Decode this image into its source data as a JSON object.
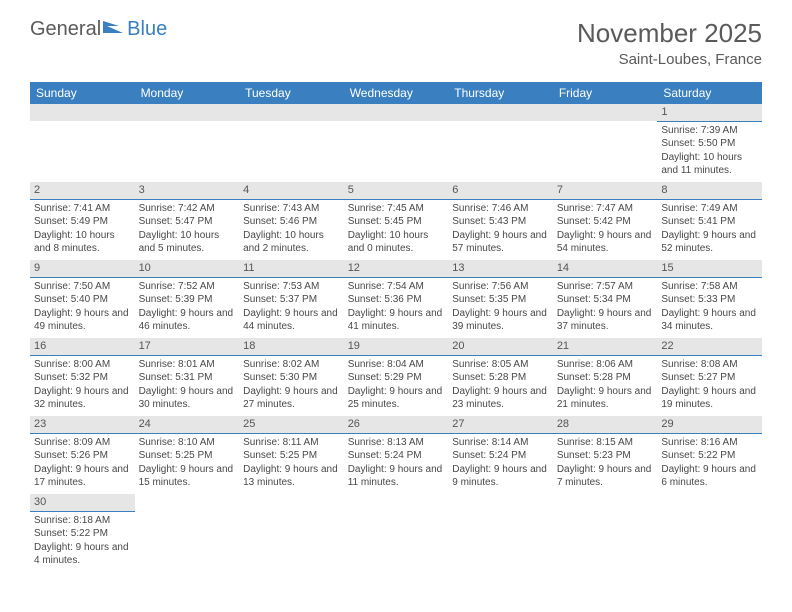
{
  "logo": {
    "general": "General",
    "blue": "Blue"
  },
  "title": "November 2025",
  "location": "Saint-Loubes, France",
  "colors": {
    "header_bg": "#3a7fbf",
    "header_text": "#ffffff",
    "daynum_bg": "#e6e6e6",
    "daynum_border": "#3a7fbf",
    "body_text": "#484848",
    "page_bg": "#ffffff"
  },
  "columns": [
    "Sunday",
    "Monday",
    "Tuesday",
    "Wednesday",
    "Thursday",
    "Friday",
    "Saturday"
  ],
  "first_day_col": 6,
  "days": [
    {
      "n": 1,
      "sr": "7:39 AM",
      "ss": "5:50 PM",
      "dl": "10 hours and 11 minutes."
    },
    {
      "n": 2,
      "sr": "7:41 AM",
      "ss": "5:49 PM",
      "dl": "10 hours and 8 minutes."
    },
    {
      "n": 3,
      "sr": "7:42 AM",
      "ss": "5:47 PM",
      "dl": "10 hours and 5 minutes."
    },
    {
      "n": 4,
      "sr": "7:43 AM",
      "ss": "5:46 PM",
      "dl": "10 hours and 2 minutes."
    },
    {
      "n": 5,
      "sr": "7:45 AM",
      "ss": "5:45 PM",
      "dl": "10 hours and 0 minutes."
    },
    {
      "n": 6,
      "sr": "7:46 AM",
      "ss": "5:43 PM",
      "dl": "9 hours and 57 minutes."
    },
    {
      "n": 7,
      "sr": "7:47 AM",
      "ss": "5:42 PM",
      "dl": "9 hours and 54 minutes."
    },
    {
      "n": 8,
      "sr": "7:49 AM",
      "ss": "5:41 PM",
      "dl": "9 hours and 52 minutes."
    },
    {
      "n": 9,
      "sr": "7:50 AM",
      "ss": "5:40 PM",
      "dl": "9 hours and 49 minutes."
    },
    {
      "n": 10,
      "sr": "7:52 AM",
      "ss": "5:39 PM",
      "dl": "9 hours and 46 minutes."
    },
    {
      "n": 11,
      "sr": "7:53 AM",
      "ss": "5:37 PM",
      "dl": "9 hours and 44 minutes."
    },
    {
      "n": 12,
      "sr": "7:54 AM",
      "ss": "5:36 PM",
      "dl": "9 hours and 41 minutes."
    },
    {
      "n": 13,
      "sr": "7:56 AM",
      "ss": "5:35 PM",
      "dl": "9 hours and 39 minutes."
    },
    {
      "n": 14,
      "sr": "7:57 AM",
      "ss": "5:34 PM",
      "dl": "9 hours and 37 minutes."
    },
    {
      "n": 15,
      "sr": "7:58 AM",
      "ss": "5:33 PM",
      "dl": "9 hours and 34 minutes."
    },
    {
      "n": 16,
      "sr": "8:00 AM",
      "ss": "5:32 PM",
      "dl": "9 hours and 32 minutes."
    },
    {
      "n": 17,
      "sr": "8:01 AM",
      "ss": "5:31 PM",
      "dl": "9 hours and 30 minutes."
    },
    {
      "n": 18,
      "sr": "8:02 AM",
      "ss": "5:30 PM",
      "dl": "9 hours and 27 minutes."
    },
    {
      "n": 19,
      "sr": "8:04 AM",
      "ss": "5:29 PM",
      "dl": "9 hours and 25 minutes."
    },
    {
      "n": 20,
      "sr": "8:05 AM",
      "ss": "5:28 PM",
      "dl": "9 hours and 23 minutes."
    },
    {
      "n": 21,
      "sr": "8:06 AM",
      "ss": "5:28 PM",
      "dl": "9 hours and 21 minutes."
    },
    {
      "n": 22,
      "sr": "8:08 AM",
      "ss": "5:27 PM",
      "dl": "9 hours and 19 minutes."
    },
    {
      "n": 23,
      "sr": "8:09 AM",
      "ss": "5:26 PM",
      "dl": "9 hours and 17 minutes."
    },
    {
      "n": 24,
      "sr": "8:10 AM",
      "ss": "5:25 PM",
      "dl": "9 hours and 15 minutes."
    },
    {
      "n": 25,
      "sr": "8:11 AM",
      "ss": "5:25 PM",
      "dl": "9 hours and 13 minutes."
    },
    {
      "n": 26,
      "sr": "8:13 AM",
      "ss": "5:24 PM",
      "dl": "9 hours and 11 minutes."
    },
    {
      "n": 27,
      "sr": "8:14 AM",
      "ss": "5:24 PM",
      "dl": "9 hours and 9 minutes."
    },
    {
      "n": 28,
      "sr": "8:15 AM",
      "ss": "5:23 PM",
      "dl": "9 hours and 7 minutes."
    },
    {
      "n": 29,
      "sr": "8:16 AM",
      "ss": "5:22 PM",
      "dl": "9 hours and 6 minutes."
    },
    {
      "n": 30,
      "sr": "8:18 AM",
      "ss": "5:22 PM",
      "dl": "9 hours and 4 minutes."
    }
  ],
  "labels": {
    "sunrise": "Sunrise:",
    "sunset": "Sunset:",
    "daylight": "Daylight:"
  }
}
